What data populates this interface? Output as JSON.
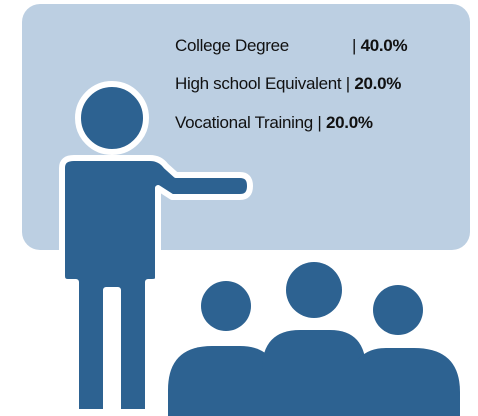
{
  "items": [
    {
      "label": "College Degree",
      "separator": "|",
      "value": "40.0%"
    },
    {
      "label": "High school Equivalent",
      "separator": "|",
      "value": "20.0%"
    },
    {
      "label": "Vocational Training",
      "separator": "|",
      "value": "20.0%"
    }
  ]
}
